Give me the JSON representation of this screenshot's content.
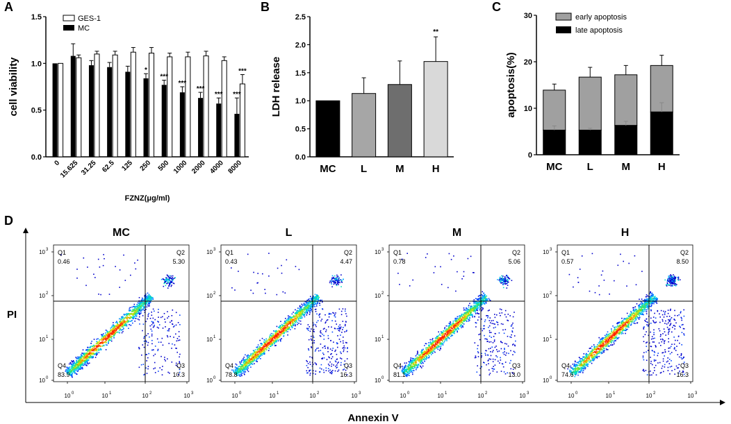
{
  "panel_labels": {
    "a": "A",
    "b": "B",
    "c": "C",
    "d": "D"
  },
  "chart_data": [
    {
      "type": "bar",
      "panel": "A",
      "categories": [
        "0",
        "15.625",
        "31.25",
        "62.5",
        "125",
        "250",
        "500",
        "1000",
        "2000",
        "4000",
        "8000"
      ],
      "series": [
        {
          "name": "GES-1",
          "values": [
            1.0,
            1.06,
            1.1,
            1.09,
            1.12,
            1.11,
            1.07,
            1.07,
            1.08,
            1.03,
            0.78
          ],
          "errors": [
            0.0,
            0.03,
            0.03,
            0.04,
            0.05,
            0.06,
            0.04,
            0.05,
            0.05,
            0.04,
            0.1
          ]
        },
        {
          "name": "MC",
          "values": [
            1.0,
            1.08,
            0.98,
            0.96,
            0.91,
            0.84,
            0.77,
            0.69,
            0.63,
            0.57,
            0.46
          ],
          "errors": [
            0.0,
            0.13,
            0.05,
            0.05,
            0.06,
            0.05,
            0.05,
            0.06,
            0.06,
            0.06,
            0.17
          ]
        }
      ],
      "significance": [
        "",
        "",
        "",
        "",
        "",
        "*",
        "***",
        "***",
        "***",
        "***",
        "***"
      ],
      "significance_ges": [
        "",
        "",
        "",
        "",
        "",
        "",
        "",
        "",
        "",
        "",
        "***"
      ],
      "xlabel": "FZNZ(μg/ml)",
      "ylabel": "cell viability",
      "ylim": [
        0,
        1.5
      ],
      "yticks": [
        "0.0",
        "0.5",
        "1.0",
        "1.5"
      ],
      "legend_position": "top-left"
    },
    {
      "type": "bar",
      "panel": "B",
      "categories": [
        "MC",
        "L",
        "M",
        "H"
      ],
      "values": [
        1.0,
        1.13,
        1.29,
        1.7
      ],
      "errors": [
        0.0,
        0.28,
        0.42,
        0.44
      ],
      "colors": [
        "#000000",
        "#a6a6a6",
        "#6e6e6e",
        "#d9d9d9"
      ],
      "significance": [
        "",
        "",
        "",
        "**"
      ],
      "xlabel": "",
      "ylabel": "LDH release",
      "ylim": [
        0,
        2.5
      ],
      "yticks": [
        "0.0",
        "0.5",
        "1.0",
        "1.5",
        "2.0",
        "2.5"
      ]
    },
    {
      "type": "bar",
      "stacked": true,
      "panel": "C",
      "categories": [
        "MC",
        "L",
        "M",
        "H"
      ],
      "series": [
        {
          "name": "late apoptosis",
          "values": [
            5.3,
            5.3,
            6.3,
            9.2
          ],
          "errors": [
            0.9,
            0.4,
            0.9,
            2.0
          ],
          "color": "#000000"
        },
        {
          "name": "early apoptosis",
          "values": [
            8.6,
            11.4,
            10.9,
            10.0
          ],
          "errors": [
            1.3,
            2.1,
            2.0,
            2.2
          ],
          "color": "#a0a0a0"
        }
      ],
      "totals": [
        13.9,
        16.7,
        17.2,
        19.2
      ],
      "xlabel": "",
      "ylabel": "apoptosis(%)",
      "ylim": [
        0,
        30
      ],
      "yticks": [
        "0",
        "10",
        "20",
        "30"
      ],
      "legend_position": "top"
    }
  ],
  "flow": {
    "ylabel": "PI",
    "xlabel": "Annexin V",
    "decade_base": "10",
    "decade_exps": [
      "0",
      "1",
      "2",
      "3"
    ],
    "panels": [
      {
        "title": "MC",
        "q1": "Q1",
        "q1v": "0.46",
        "q2": "Q2",
        "q2v": "5.30",
        "q3": "Q3",
        "q3v": "10.3",
        "q4": "Q4",
        "q4v": "83.9"
      },
      {
        "title": "L",
        "q1": "Q1",
        "q1v": "0.43",
        "q2": "Q2",
        "q2v": "4.47",
        "q3": "Q3",
        "q3v": "16.3",
        "q4": "Q4",
        "q4v": "78.8"
      },
      {
        "title": "M",
        "q1": "Q1",
        "q1v": "0.78",
        "q2": "Q2",
        "q2v": "5.06",
        "q3": "Q3",
        "q3v": "13.0",
        "q4": "Q4",
        "q4v": "81.1"
      },
      {
        "title": "H",
        "q1": "Q1",
        "q1v": "0.57",
        "q2": "Q2",
        "q2v": "8.50",
        "q3": "Q3",
        "q3v": "16.3",
        "q4": "Q4",
        "q4v": "74.6"
      }
    ]
  }
}
